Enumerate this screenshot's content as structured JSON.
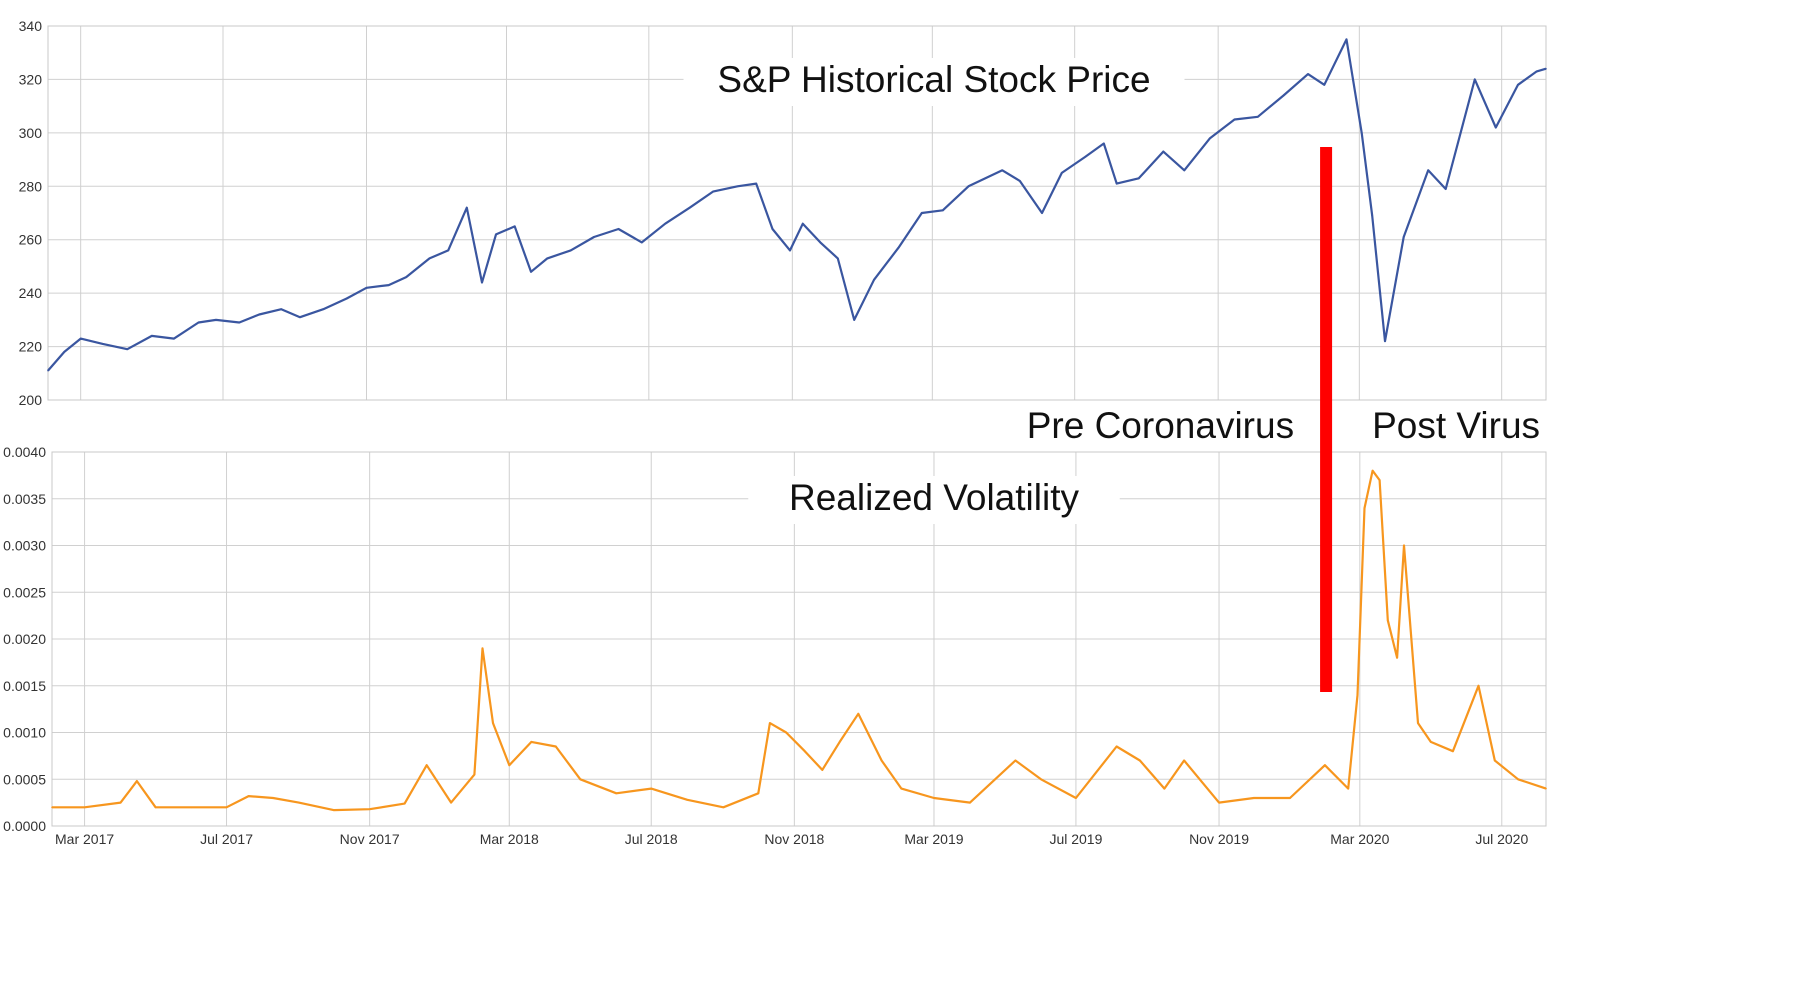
{
  "chart_data": [
    {
      "type": "line",
      "title": "S&P Historical Stock Price",
      "xlabel": "",
      "ylabel": "",
      "ylim": [
        200,
        340
      ],
      "y_ticks": [
        {
          "value": 200,
          "label": "200"
        },
        {
          "value": 220,
          "label": "220"
        },
        {
          "value": 240,
          "label": "240"
        },
        {
          "value": 260,
          "label": "260"
        },
        {
          "value": 280,
          "label": "280"
        },
        {
          "value": 300,
          "label": "300"
        },
        {
          "value": 320,
          "label": "320"
        },
        {
          "value": 340,
          "label": "340"
        }
      ],
      "grid": true,
      "series": [
        {
          "name": "S&P Historical Stock Price",
          "color": "#3a56a0",
          "points": [
            [
              "2017-02-01",
              211
            ],
            [
              "2017-02-15",
              218
            ],
            [
              "2017-03-01",
              223
            ],
            [
              "2017-03-20",
              221
            ],
            [
              "2017-04-10",
              219
            ],
            [
              "2017-05-01",
              224
            ],
            [
              "2017-05-20",
              223
            ],
            [
              "2017-06-10",
              229
            ],
            [
              "2017-06-25",
              230
            ],
            [
              "2017-07-15",
              229
            ],
            [
              "2017-08-01",
              232
            ],
            [
              "2017-08-20",
              234
            ],
            [
              "2017-09-05",
              231
            ],
            [
              "2017-09-25",
              234
            ],
            [
              "2017-10-15",
              238
            ],
            [
              "2017-11-01",
              242
            ],
            [
              "2017-11-20",
              243
            ],
            [
              "2017-12-05",
              246
            ],
            [
              "2017-12-25",
              253
            ],
            [
              "2018-01-10",
              256
            ],
            [
              "2018-01-26",
              272
            ],
            [
              "2018-02-08",
              244
            ],
            [
              "2018-02-20",
              262
            ],
            [
              "2018-03-08",
              265
            ],
            [
              "2018-03-22",
              248
            ],
            [
              "2018-04-05",
              253
            ],
            [
              "2018-04-25",
              256
            ],
            [
              "2018-05-15",
              261
            ],
            [
              "2018-06-05",
              264
            ],
            [
              "2018-06-25",
              259
            ],
            [
              "2018-07-15",
              266
            ],
            [
              "2018-08-05",
              272
            ],
            [
              "2018-08-25",
              278
            ],
            [
              "2018-09-15",
              280
            ],
            [
              "2018-10-01",
              281
            ],
            [
              "2018-10-15",
              264
            ],
            [
              "2018-10-30",
              256
            ],
            [
              "2018-11-10",
              266
            ],
            [
              "2018-11-25",
              259
            ],
            [
              "2018-12-10",
              253
            ],
            [
              "2018-12-24",
              230
            ],
            [
              "2019-01-10",
              245
            ],
            [
              "2019-01-31",
              257
            ],
            [
              "2019-02-20",
              270
            ],
            [
              "2019-03-10",
              271
            ],
            [
              "2019-04-01",
              280
            ],
            [
              "2019-04-30",
              286
            ],
            [
              "2019-05-15",
              282
            ],
            [
              "2019-06-03",
              270
            ],
            [
              "2019-06-20",
              285
            ],
            [
              "2019-07-10",
              291
            ],
            [
              "2019-07-26",
              296
            ],
            [
              "2019-08-06",
              281
            ],
            [
              "2019-08-25",
              283
            ],
            [
              "2019-09-15",
              293
            ],
            [
              "2019-10-03",
              286
            ],
            [
              "2019-10-25",
              298
            ],
            [
              "2019-11-15",
              305
            ],
            [
              "2019-12-05",
              306
            ],
            [
              "2019-12-27",
              314
            ],
            [
              "2020-01-17",
              322
            ],
            [
              "2020-01-31",
              318
            ],
            [
              "2020-02-19",
              335
            ],
            [
              "2020-03-03",
              300
            ],
            [
              "2020-03-12",
              269
            ],
            [
              "2020-03-23",
              222
            ],
            [
              "2020-04-08",
              261
            ],
            [
              "2020-04-29",
              286
            ],
            [
              "2020-05-14",
              279
            ],
            [
              "2020-06-08",
              320
            ],
            [
              "2020-06-26",
              302
            ],
            [
              "2020-07-15",
              318
            ],
            [
              "2020-07-31",
              323
            ],
            [
              "2020-08-08",
              324
            ]
          ]
        }
      ]
    },
    {
      "type": "line",
      "title": "Realized Volatility",
      "xlabel": "",
      "ylabel": "",
      "ylim": [
        0,
        0.004
      ],
      "y_ticks": [
        {
          "value": 0,
          "label": "0.0000"
        },
        {
          "value": 0.0005,
          "label": "0.0005"
        },
        {
          "value": 0.001,
          "label": "0.0010"
        },
        {
          "value": 0.0015,
          "label": "0.0015"
        },
        {
          "value": 0.002,
          "label": "0.0020"
        },
        {
          "value": 0.0025,
          "label": "0.0025"
        },
        {
          "value": 0.003,
          "label": "0.0030"
        },
        {
          "value": 0.0035,
          "label": "0.0035"
        },
        {
          "value": 0.004,
          "label": "0.0040"
        }
      ],
      "grid": true,
      "series": [
        {
          "name": "Realized Volatility",
          "color": "#f7961e",
          "points": [
            [
              "2017-02-01",
              0.0002
            ],
            [
              "2017-03-01",
              0.0002
            ],
            [
              "2017-04-01",
              0.00025
            ],
            [
              "2017-04-15",
              0.00048
            ],
            [
              "2017-05-01",
              0.0002
            ],
            [
              "2017-06-01",
              0.0002
            ],
            [
              "2017-07-01",
              0.0002
            ],
            [
              "2017-07-20",
              0.00032
            ],
            [
              "2017-08-10",
              0.0003
            ],
            [
              "2017-09-01",
              0.00025
            ],
            [
              "2017-10-01",
              0.00017
            ],
            [
              "2017-11-01",
              0.00018
            ],
            [
              "2017-12-01",
              0.00024
            ],
            [
              "2017-12-20",
              0.00065
            ],
            [
              "2018-01-10",
              0.00025
            ],
            [
              "2018-01-30",
              0.00055
            ],
            [
              "2018-02-06",
              0.0019
            ],
            [
              "2018-02-15",
              0.0011
            ],
            [
              "2018-03-01",
              0.00065
            ],
            [
              "2018-03-20",
              0.0009
            ],
            [
              "2018-04-10",
              0.00085
            ],
            [
              "2018-05-01",
              0.0005
            ],
            [
              "2018-06-01",
              0.00035
            ],
            [
              "2018-07-01",
              0.0004
            ],
            [
              "2018-08-01",
              0.00028
            ],
            [
              "2018-09-01",
              0.0002
            ],
            [
              "2018-10-01",
              0.00035
            ],
            [
              "2018-10-11",
              0.0011
            ],
            [
              "2018-10-25",
              0.001
            ],
            [
              "2018-11-10",
              0.0008
            ],
            [
              "2018-11-25",
              0.0006
            ],
            [
              "2018-12-10",
              0.0009
            ],
            [
              "2018-12-26",
              0.0012
            ],
            [
              "2019-01-15",
              0.0007
            ],
            [
              "2019-02-01",
              0.0004
            ],
            [
              "2019-03-01",
              0.0003
            ],
            [
              "2019-04-01",
              0.00025
            ],
            [
              "2019-05-10",
              0.0007
            ],
            [
              "2019-06-01",
              0.0005
            ],
            [
              "2019-07-01",
              0.0003
            ],
            [
              "2019-08-05",
              0.00085
            ],
            [
              "2019-08-25",
              0.0007
            ],
            [
              "2019-09-15",
              0.0004
            ],
            [
              "2019-10-02",
              0.0007
            ],
            [
              "2019-11-01",
              0.00025
            ],
            [
              "2019-12-01",
              0.0003
            ],
            [
              "2020-01-01",
              0.0003
            ],
            [
              "2020-01-31",
              0.00065
            ],
            [
              "2020-02-20",
              0.0004
            ],
            [
              "2020-02-28",
              0.0014
            ],
            [
              "2020-03-05",
              0.0034
            ],
            [
              "2020-03-12",
              0.0038
            ],
            [
              "2020-03-18",
              0.0037
            ],
            [
              "2020-03-25",
              0.0022
            ],
            [
              "2020-04-02",
              0.0018
            ],
            [
              "2020-04-08",
              0.003
            ],
            [
              "2020-04-20",
              0.0011
            ],
            [
              "2020-05-01",
              0.0009
            ],
            [
              "2020-05-20",
              0.0008
            ],
            [
              "2020-06-11",
              0.0015
            ],
            [
              "2020-06-25",
              0.0007
            ],
            [
              "2020-07-15",
              0.0005
            ],
            [
              "2020-08-08",
              0.0004
            ]
          ]
        }
      ]
    }
  ],
  "x_axis": {
    "ticks": [
      {
        "date": "2017-03-01",
        "label": "Mar 2017"
      },
      {
        "date": "2017-07-01",
        "label": "Jul 2017"
      },
      {
        "date": "2017-11-01",
        "label": "Nov 2017"
      },
      {
        "date": "2018-03-01",
        "label": "Mar 2018"
      },
      {
        "date": "2018-07-01",
        "label": "Jul 2018"
      },
      {
        "date": "2018-11-01",
        "label": "Nov 2018"
      },
      {
        "date": "2019-03-01",
        "label": "Mar 2019"
      },
      {
        "date": "2019-07-01",
        "label": "Jul 2019"
      },
      {
        "date": "2019-11-01",
        "label": "Nov 2019"
      },
      {
        "date": "2020-03-01",
        "label": "Mar 2020"
      },
      {
        "date": "2020-07-01",
        "label": "Jul 2020"
      }
    ],
    "range": [
      "2017-02-01",
      "2020-08-08"
    ]
  },
  "annotations": {
    "pre": "Pre Coronavirus",
    "post": "Post Virus",
    "divider_date": "2020-02-01",
    "divider_color": "#ff0000"
  }
}
